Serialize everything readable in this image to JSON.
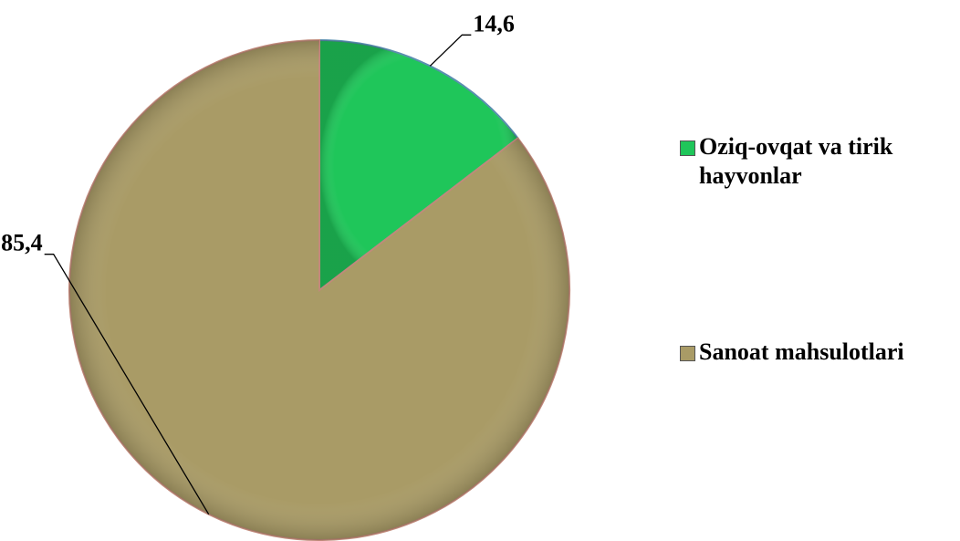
{
  "chart_data": {
    "type": "pie",
    "categories": [
      "Oziq-ovqat va tirik hayvonlar",
      "Sanoat mahsulotlari"
    ],
    "values": [
      14.6,
      85.4
    ],
    "value_labels": [
      "14,6",
      "85,4"
    ],
    "colors": [
      "#1fc65a",
      "#a99b66"
    ],
    "legend": "right"
  }
}
